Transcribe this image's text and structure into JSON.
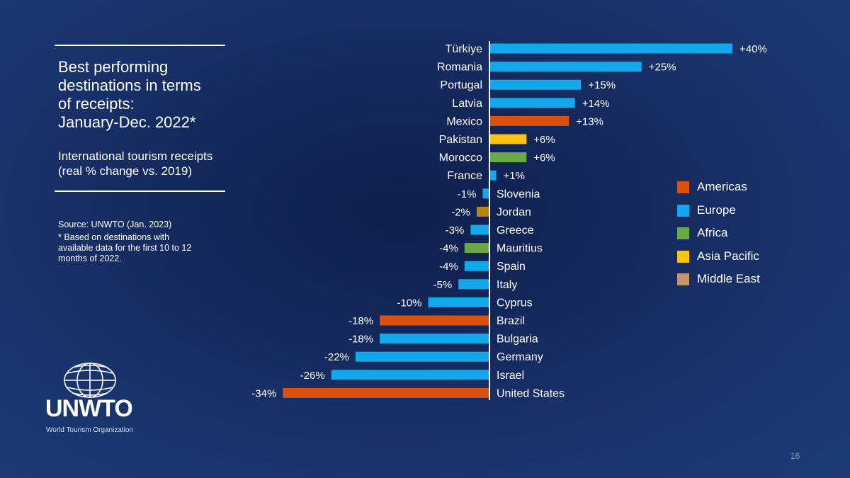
{
  "title_lines": [
    "Best performing",
    "destinations in terms",
    "of receipts:",
    "January-Dec. 2022*"
  ],
  "subtitle_lines": [
    "International tourism receipts",
    "(real % change vs. 2019)"
  ],
  "source": "Source: UNWTO (Jan. 2023)",
  "footnote_lines": [
    "*  Based on destinations with",
    "available data for the first 10 to 12",
    "months of 2022."
  ],
  "logo": {
    "word": "UNWTO",
    "sub": "World Tourism Organization",
    "icon": "globe-icon"
  },
  "page_number": "16",
  "colors": {
    "Americas": "#d9500f",
    "Europe": "#12a9ec",
    "Africa": "#6aaa45",
    "Asia Pacific": "#ffc20e",
    "Middle East": "#b8860b",
    "Middle East legend": "#c8956a"
  },
  "legend": [
    {
      "label": "Americas",
      "color": "#d9500f"
    },
    {
      "label": "Europe",
      "color": "#12a9ec"
    },
    {
      "label": "Africa",
      "color": "#6aaa45"
    },
    {
      "label": "Asia Pacific",
      "color": "#ffc20e"
    },
    {
      "label": "Middle East",
      "color": "#c8956a"
    }
  ],
  "chart_data": {
    "type": "bar",
    "orientation": "horizontal",
    "unit": "%",
    "categories": [
      "Türkiye",
      "Romania",
      "Portugal",
      "Latvia",
      "Mexico",
      "Pakistan",
      "Morocco",
      "France",
      "Slovenia",
      "Jordan",
      "Greece",
      "Mauritius",
      "Spain",
      "Italy",
      "Cyprus",
      "Brazil",
      "Bulgaria",
      "Germany",
      "Israel",
      "United States"
    ],
    "values": [
      40,
      25,
      15,
      14,
      13,
      6,
      6,
      1,
      -1,
      -2,
      -3,
      -4,
      -4,
      -5,
      -10,
      -18,
      -18,
      -22,
      -26,
      -34
    ],
    "labels": [
      "+40%",
      "+25%",
      "+15%",
      "+14%",
      "+13%",
      "+6%",
      "+6%",
      "+1%",
      "-1%",
      "-2%",
      "-3%",
      "-4%",
      "-4%",
      "-5%",
      "-10%",
      "-18%",
      "-18%",
      "-22%",
      "-26%",
      "-34%"
    ],
    "regions": [
      "Europe",
      "Europe",
      "Europe",
      "Europe",
      "Americas",
      "Asia Pacific",
      "Africa",
      "Europe",
      "Europe",
      "Middle East",
      "Europe",
      "Africa",
      "Europe",
      "Europe",
      "Europe",
      "Americas",
      "Europe",
      "Europe",
      "Europe",
      "Americas"
    ],
    "xlim": [
      -34,
      40
    ],
    "grid": false,
    "legend_position": "right"
  }
}
